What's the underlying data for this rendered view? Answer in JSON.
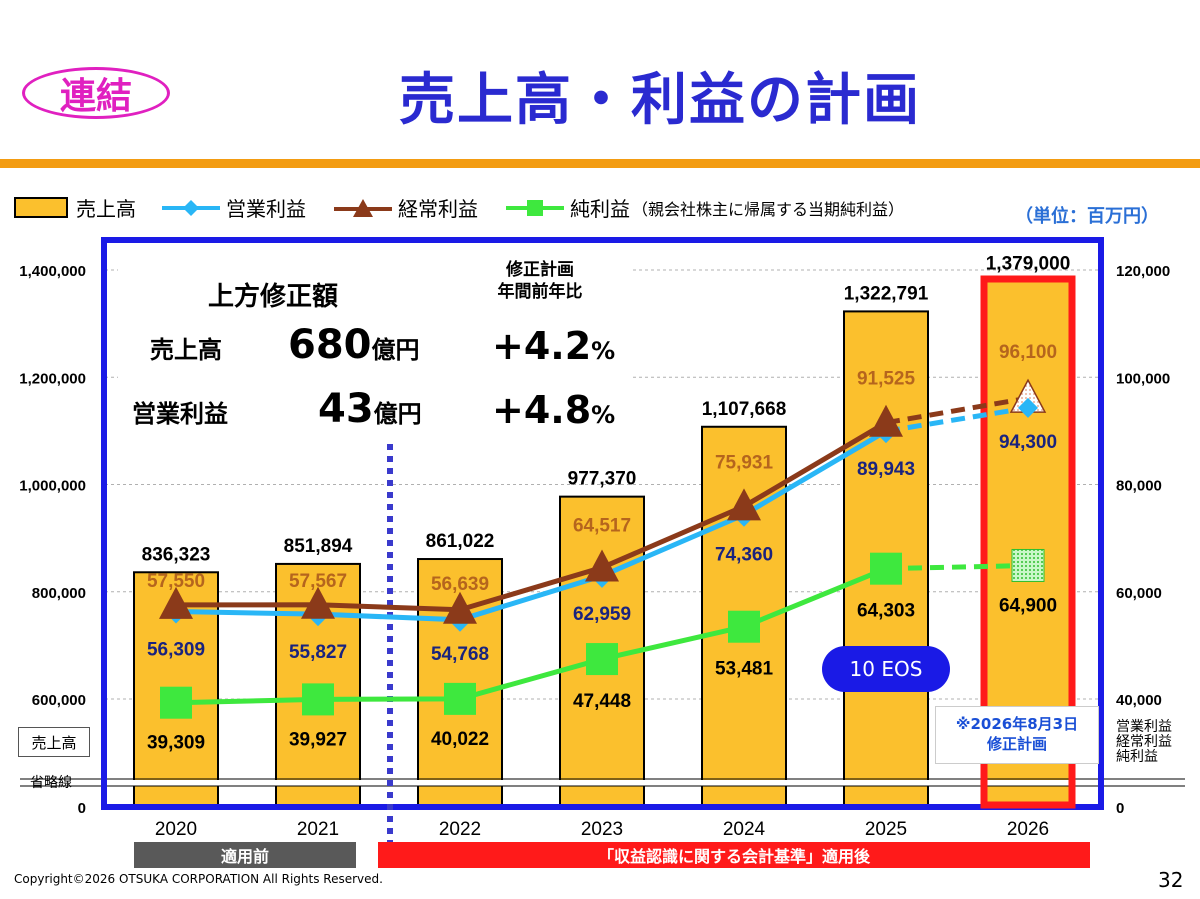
{
  "header": {
    "badge": "連結",
    "title": "売上高・利益の計画"
  },
  "legend": {
    "sales": "売上高",
    "operating": "営業利益",
    "ordinary": "経常利益",
    "net": "純利益",
    "net_note": "（親会社株主に帰属する当期純利益）",
    "unit": "（単位：百万円）"
  },
  "callout": {
    "title": "上方修正額",
    "plan_header_1": "修正計画",
    "plan_header_2": "年間前年比",
    "row1_label": "売上高",
    "row1_amount": "680",
    "row1_unit": "億円",
    "row1_pct": "+4.2",
    "row1_pct_unit": "%",
    "row2_label": "営業利益",
    "row2_amount": "43",
    "row2_unit": "億円",
    "row2_pct": "+4.8",
    "row2_pct_unit": "%"
  },
  "annotations": {
    "eos": "10 EOS",
    "revision_line1": "※2026年8月3日",
    "revision_line2": "修正計画",
    "left_axis_tag": "売上高",
    "omission": "省略線",
    "right_axis_tag_1": "営業利益",
    "right_axis_tag_2": "経常利益",
    "right_axis_tag_3": "純利益",
    "before_label": "適用前",
    "after_label": "「収益認識に関する会計基準」適用後"
  },
  "footer": {
    "copyright": "Copyright©2026 OTSUKA CORPORATION All Rights Reserved.",
    "page": "32"
  },
  "colors": {
    "bar": "#fbc02d",
    "operating": "#29b6f6",
    "ordinary": "#8b3a1a",
    "net": "#3ee83e",
    "frame": "#1a1ae6",
    "highlight": "#ff1a1a"
  },
  "chart_data": {
    "type": "bar",
    "categories": [
      "2020",
      "2021",
      "2022",
      "2023",
      "2024",
      "2025",
      "2026"
    ],
    "left_axis": {
      "ticks": [
        "0",
        "600,000",
        "800,000",
        "1,000,000",
        "1,200,000",
        "1,400,000"
      ],
      "ylim": [
        600000,
        1400000
      ],
      "broken": true
    },
    "right_axis": {
      "ticks": [
        "0",
        "40,000",
        "60,000",
        "80,000",
        "100,000",
        "120,000"
      ],
      "ylim": [
        40000,
        120000
      ],
      "broken": true
    },
    "series": [
      {
        "name": "売上高",
        "kind": "bar",
        "axis": "left",
        "values": [
          836323,
          851894,
          861022,
          977370,
          1107668,
          1322791,
          1379000
        ],
        "labels": [
          "836,323",
          "851,894",
          "861,022",
          "977,370",
          "1,107,668",
          "1,322,791",
          "1,379,000"
        ]
      },
      {
        "name": "営業利益",
        "kind": "line",
        "axis": "right",
        "values": [
          56309,
          55827,
          54768,
          62959,
          74360,
          89943,
          94300
        ],
        "labels": [
          "56,309",
          "55,827",
          "54,768",
          "62,959",
          "74,360",
          "89,943",
          "94,300"
        ]
      },
      {
        "name": "経常利益",
        "kind": "line",
        "axis": "right",
        "values": [
          57550,
          57567,
          56639,
          64517,
          75931,
          91525,
          96100
        ],
        "labels": [
          "57,550",
          "57,567",
          "56,639",
          "64,517",
          "75,931",
          "91,525",
          "96,100"
        ]
      },
      {
        "name": "純利益",
        "kind": "line",
        "axis": "right",
        "values": [
          39309,
          39927,
          40022,
          47448,
          53481,
          64303,
          64900
        ],
        "labels": [
          "39,309",
          "39,927",
          "40,022",
          "47,448",
          "53,481",
          "64,303",
          "64,900"
        ]
      }
    ],
    "forecast_category": "2026",
    "grid": true
  }
}
